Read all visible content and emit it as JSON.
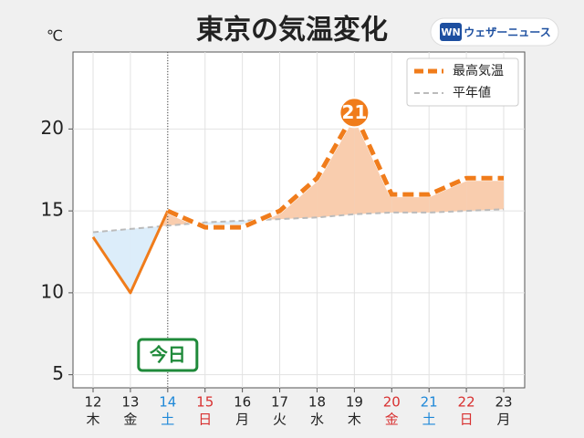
{
  "chart_data": {
    "type": "line",
    "title": "東京の気温変化",
    "y_unit": "℃",
    "logo": {
      "mark": "WN",
      "text": "ウェザーニュース"
    },
    "categories": [
      "12",
      "13",
      "14",
      "15",
      "16",
      "17",
      "18",
      "19",
      "20",
      "21",
      "22",
      "23"
    ],
    "weekdays": [
      "木",
      "金",
      "土",
      "日",
      "月",
      "火",
      "水",
      "木",
      "金",
      "土",
      "日",
      "月"
    ],
    "x_label_colors": [
      "#222222",
      "#222222",
      "#1e88d8",
      "#d83030",
      "#222222",
      "#222222",
      "#222222",
      "#222222",
      "#d83030",
      "#1e88d8",
      "#d83030",
      "#222222"
    ],
    "series": [
      {
        "name": "最高気温",
        "color": "#f07c1b",
        "values": [
          13.4,
          10,
          15,
          14,
          14,
          15,
          17,
          21,
          16,
          16,
          17,
          17
        ],
        "value_labels": [
          null,
          null,
          null,
          null,
          null,
          null,
          null,
          "21",
          null,
          null,
          null,
          null
        ]
      },
      {
        "name": "平年値",
        "color": "#bbbbbb",
        "values": [
          13.7,
          13.9,
          14.1,
          14.3,
          14.4,
          14.5,
          14.6,
          14.8,
          14.9,
          14.9,
          15.0,
          15.1
        ]
      }
    ],
    "above_color": "#f9cdae",
    "below_color": "#dcedfa",
    "annotation": {
      "text": "今日",
      "x": "14",
      "color": "#1f8a3a"
    },
    "ylim": [
      4.2,
      24.7
    ],
    "yticks": [
      5,
      10,
      15,
      20
    ],
    "grid": true,
    "legend": "upper right"
  }
}
